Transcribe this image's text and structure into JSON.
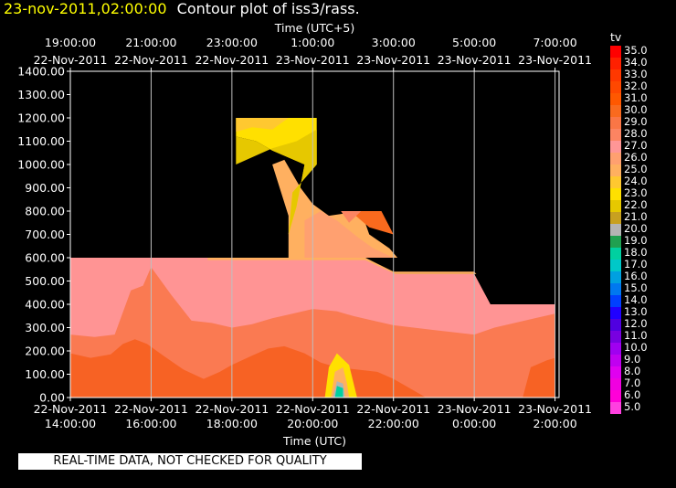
{
  "header": {
    "date": "23-nov-2011,02:00:00",
    "title": "Contour plot of iss3/rass."
  },
  "note": "REAL-TIME DATA, NOT CHECKED FOR QUALITY",
  "chart_data": {
    "type": "heatmap",
    "variable": "tv",
    "xlabel": "Time (UTC)",
    "x2label": "Time (UTC+5)",
    "xlim": [
      14,
      26.1
    ],
    "ylim": [
      0,
      1400
    ],
    "grid": true,
    "legend_position": "right",
    "y_ticks": [
      "0.00",
      "100.00",
      "200.00",
      "300.00",
      "400.00",
      "500.00",
      "600.00",
      "700.00",
      "800.00",
      "900.00",
      "1000.00",
      "1100.00",
      "1200.00",
      "1300.00",
      "1400.00"
    ],
    "x_ticks_bottom": [
      {
        "x": 14,
        "time": "14:00:00",
        "date": "22-Nov-2011"
      },
      {
        "x": 16,
        "time": "16:00:00",
        "date": "22-Nov-2011"
      },
      {
        "x": 18,
        "time": "18:00:00",
        "date": "22-Nov-2011"
      },
      {
        "x": 20,
        "time": "20:00:00",
        "date": "22-Nov-2011"
      },
      {
        "x": 22,
        "time": "22:00:00",
        "date": "22-Nov-2011"
      },
      {
        "x": 24,
        "time": "0:00:00",
        "date": "23-Nov-2011"
      },
      {
        "x": 26,
        "time": "2:00:00",
        "date": "23-Nov-2011"
      }
    ],
    "x_ticks_top": [
      {
        "x": 14,
        "time": "19:00:00",
        "date": "22-Nov-2011"
      },
      {
        "x": 16,
        "time": "21:00:00",
        "date": "22-Nov-2011"
      },
      {
        "x": 18,
        "time": "23:00:00",
        "date": "22-Nov-2011"
      },
      {
        "x": 20,
        "time": "1:00:00",
        "date": "23-Nov-2011"
      },
      {
        "x": 22,
        "time": "3:00:00",
        "date": "23-Nov-2011"
      },
      {
        "x": 24,
        "time": "5:00:00",
        "date": "23-Nov-2011"
      },
      {
        "x": 26,
        "time": "7:00:00",
        "date": "23-Nov-2011"
      }
    ],
    "colorbar": {
      "label": "tv",
      "levels": [
        {
          "value": "35.0",
          "color": "#ff0000"
        },
        {
          "value": "34.0",
          "color": "#ff2000"
        },
        {
          "value": "33.0",
          "color": "#ff3800"
        },
        {
          "value": "32.0",
          "color": "#ff4800"
        },
        {
          "value": "31.0",
          "color": "#ff5800"
        },
        {
          "value": "30.0",
          "color": "#f96a1e"
        },
        {
          "value": "29.0",
          "color": "#fa7646"
        },
        {
          "value": "28.0",
          "color": "#fc8462"
        },
        {
          "value": "27.0",
          "color": "#ff9696"
        },
        {
          "value": "26.0",
          "color": "#ffa070"
        },
        {
          "value": "25.0",
          "color": "#ffb060"
        },
        {
          "value": "24.0",
          "color": "#ffc830"
        },
        {
          "value": "23.0",
          "color": "#ffe000"
        },
        {
          "value": "22.0",
          "color": "#e6c800"
        },
        {
          "value": "21.0",
          "color": "#c8a020"
        },
        {
          "value": "20.0",
          "color": "#b4b4b4"
        },
        {
          "value": "19.0",
          "color": "#20a050"
        },
        {
          "value": "18.0",
          "color": "#00d0a0"
        },
        {
          "value": "17.0",
          "color": "#00c8c8"
        },
        {
          "value": "16.0",
          "color": "#00a0e0"
        },
        {
          "value": "15.0",
          "color": "#0078f0"
        },
        {
          "value": "14.0",
          "color": "#0040ff"
        },
        {
          "value": "13.0",
          "color": "#2000ff"
        },
        {
          "value": "12.0",
          "color": "#5000e0"
        },
        {
          "value": "11.0",
          "color": "#7800e0"
        },
        {
          "value": "10.0",
          "color": "#a000f0"
        },
        {
          "value": "9.0",
          "color": "#c000f0"
        },
        {
          "value": "8.0",
          "color": "#e000f0"
        },
        {
          "value": "7.0",
          "color": "#f000e0"
        },
        {
          "value": "6.0",
          "color": "#ff00d8"
        },
        {
          "value": "5.0",
          "color": "#ff40e0"
        }
      ]
    },
    "contour_regions": [
      {
        "tv": 26.0,
        "points": [
          [
            14,
            600
          ],
          [
            17.4,
            600
          ],
          [
            21.3,
            600
          ],
          [
            22.05,
            530
          ],
          [
            24.0,
            530
          ],
          [
            24.4,
            400
          ],
          [
            25.0,
            400
          ],
          [
            26.0,
            400
          ],
          [
            26.0,
            0
          ],
          [
            14,
            0
          ]
        ]
      },
      {
        "tv": 27.0,
        "points": [
          [
            14,
            600
          ],
          [
            17.4,
            600
          ],
          [
            21.3,
            600
          ],
          [
            22.05,
            530
          ],
          [
            24.0,
            530
          ],
          [
            24.4,
            400
          ],
          [
            25.0,
            400
          ],
          [
            26.0,
            400
          ],
          [
            26.0,
            0
          ],
          [
            14,
            0
          ]
        ]
      },
      {
        "tv": 28.0,
        "points": [
          [
            14,
            270
          ],
          [
            14.6,
            260
          ],
          [
            15.1,
            270
          ],
          [
            15.5,
            460
          ],
          [
            15.8,
            480
          ],
          [
            16.0,
            560
          ],
          [
            16.5,
            440
          ],
          [
            17.0,
            330
          ],
          [
            17.5,
            320
          ],
          [
            18.0,
            300
          ],
          [
            18.5,
            315
          ],
          [
            19.0,
            340
          ],
          [
            19.5,
            360
          ],
          [
            20.0,
            380
          ],
          [
            20.6,
            370
          ],
          [
            21.0,
            350
          ],
          [
            21.5,
            330
          ],
          [
            22.0,
            310
          ],
          [
            22.5,
            300
          ],
          [
            23.0,
            290
          ],
          [
            23.5,
            280
          ],
          [
            24.0,
            270
          ],
          [
            24.5,
            300
          ],
          [
            25.0,
            320
          ],
          [
            25.5,
            340
          ],
          [
            26.0,
            360
          ],
          [
            26.0,
            0
          ],
          [
            14,
            0
          ]
        ]
      },
      {
        "tv": 29.0,
        "points": [
          [
            14,
            190
          ],
          [
            14.5,
            170
          ],
          [
            15.0,
            185
          ],
          [
            15.3,
            230
          ],
          [
            15.6,
            250
          ],
          [
            15.9,
            230
          ],
          [
            16.3,
            180
          ],
          [
            16.8,
            120
          ],
          [
            17.3,
            80
          ],
          [
            17.7,
            110
          ],
          [
            18.0,
            140
          ],
          [
            18.5,
            180
          ],
          [
            18.9,
            210
          ],
          [
            19.3,
            220
          ],
          [
            19.8,
            190
          ],
          [
            20.2,
            150
          ],
          [
            20.6,
            130
          ],
          [
            21.1,
            120
          ],
          [
            21.6,
            110
          ],
          [
            22.0,
            80
          ],
          [
            22.4,
            40
          ],
          [
            22.7,
            10
          ],
          [
            22.8,
            0
          ],
          [
            14,
            0
          ]
        ]
      },
      {
        "tv": 29.5,
        "points": [
          [
            25.2,
            0
          ],
          [
            25.4,
            130
          ],
          [
            25.8,
            160
          ],
          [
            26.0,
            170
          ],
          [
            26.0,
            0
          ]
        ]
      },
      {
        "tv": 25.0,
        "points": [
          [
            17.4,
            600
          ],
          [
            21.3,
            600
          ],
          [
            22.0,
            540
          ],
          [
            24.0,
            540
          ],
          [
            24.05,
            530
          ],
          [
            22.05,
            530
          ],
          [
            21.3,
            590
          ],
          [
            17.4,
            590
          ]
        ]
      },
      {
        "tv": 25.0,
        "points": [
          [
            19.4,
            600
          ],
          [
            19.4,
            780
          ],
          [
            19.0,
            1000
          ],
          [
            19.3,
            1020
          ],
          [
            19.7,
            900
          ],
          [
            20.0,
            830
          ],
          [
            20.4,
            780
          ],
          [
            21.2,
            800
          ],
          [
            21.4,
            700
          ],
          [
            21.9,
            640
          ],
          [
            22.1,
            600
          ]
        ]
      },
      {
        "tv": 26.0,
        "points": [
          [
            19.8,
            600
          ],
          [
            19.8,
            760
          ],
          [
            20.2,
            800
          ],
          [
            20.6,
            760
          ],
          [
            21.1,
            690
          ],
          [
            21.5,
            640
          ],
          [
            22.0,
            600
          ]
        ]
      },
      {
        "tv": 30.0,
        "points": [
          [
            20.7,
            800
          ],
          [
            21.7,
            800
          ],
          [
            22.0,
            700
          ],
          [
            21.4,
            730
          ],
          [
            21.0,
            790
          ]
        ]
      },
      {
        "tv": 28.0,
        "points": [
          [
            20.7,
            800
          ],
          [
            21.2,
            800
          ],
          [
            20.9,
            750
          ]
        ]
      },
      {
        "tv": 23.0,
        "points": [
          [
            18.1,
            1200
          ],
          [
            20.1,
            1200
          ],
          [
            20.1,
            1000
          ],
          [
            19.5,
            880
          ],
          [
            19.4,
            700
          ],
          [
            19.6,
            820
          ],
          [
            19.8,
            1000
          ],
          [
            19.0,
            1060
          ],
          [
            18.6,
            1100
          ],
          [
            18.1,
            1120
          ]
        ]
      },
      {
        "tv": 22.0,
        "points": [
          [
            18.1,
            1120
          ],
          [
            18.6,
            1100
          ],
          [
            19.0,
            1060
          ],
          [
            19.8,
            1000
          ],
          [
            19.6,
            820
          ],
          [
            19.4,
            700
          ],
          [
            19.5,
            880
          ],
          [
            20.1,
            1000
          ],
          [
            20.1,
            1150
          ],
          [
            19.6,
            1100
          ],
          [
            19.0,
            1070
          ],
          [
            18.1,
            1000
          ]
        ]
      },
      {
        "tv": 24.0,
        "points": [
          [
            18.1,
            1200
          ],
          [
            19.4,
            1200
          ],
          [
            19.0,
            1150
          ],
          [
            18.5,
            1160
          ],
          [
            18.1,
            1140
          ]
        ]
      },
      {
        "tv": 23.0,
        "points": [
          [
            20.3,
            0
          ],
          [
            20.4,
            130
          ],
          [
            20.6,
            190
          ],
          [
            20.9,
            140
          ],
          [
            21.1,
            0
          ]
        ]
      },
      {
        "tv": 25.0,
        "points": [
          [
            20.45,
            0
          ],
          [
            20.55,
            110
          ],
          [
            20.75,
            130
          ],
          [
            20.85,
            60
          ],
          [
            20.9,
            0
          ]
        ]
      },
      {
        "tv": 20.0,
        "points": [
          [
            20.5,
            0
          ],
          [
            20.6,
            70
          ],
          [
            20.75,
            60
          ],
          [
            20.8,
            0
          ]
        ]
      },
      {
        "tv": 18.0,
        "points": [
          [
            20.55,
            0
          ],
          [
            20.6,
            50
          ],
          [
            20.75,
            40
          ],
          [
            20.75,
            0
          ]
        ]
      }
    ]
  }
}
